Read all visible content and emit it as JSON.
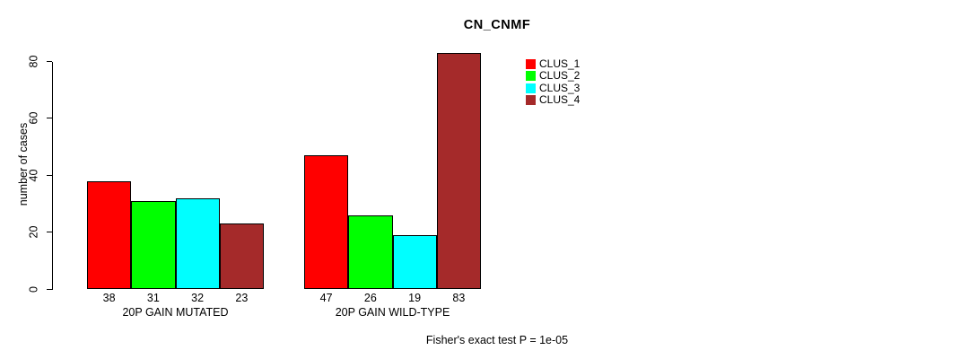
{
  "chart_data": {
    "type": "bar",
    "title": "CN_CNMF",
    "ylabel": "number of cases",
    "xlabel": "",
    "ylim": [
      0,
      80
    ],
    "yticks": [
      0,
      20,
      40,
      60,
      80
    ],
    "categories": [
      "20P GAIN MUTATED",
      "20P GAIN WILD-TYPE"
    ],
    "series": [
      {
        "name": "CLUS_1",
        "color": "#ff0000",
        "values": [
          38,
          47
        ]
      },
      {
        "name": "CLUS_2",
        "color": "#00ff00",
        "values": [
          31,
          26
        ]
      },
      {
        "name": "CLUS_3",
        "color": "#00ffff",
        "values": [
          32,
          19
        ]
      },
      {
        "name": "CLUS_4",
        "color": "#a52a2a",
        "values": [
          23,
          83
        ]
      }
    ],
    "bar_value_labels": [
      [
        38,
        31,
        32,
        23
      ],
      [
        47,
        26,
        19,
        83
      ]
    ],
    "legend": {
      "position": "top-right",
      "entries": [
        "CLUS_1",
        "CLUS_2",
        "CLUS_3",
        "CLUS_4"
      ]
    },
    "grid": false,
    "annotation": "Fisher's exact test P = 1e-05"
  },
  "colors": {
    "background": "#ffffff",
    "axis": "#000000",
    "bar_border": "#000000",
    "text": "#000000"
  }
}
